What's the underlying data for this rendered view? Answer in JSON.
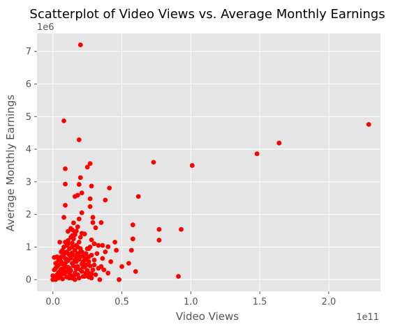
{
  "chart_data": {
    "type": "scatter",
    "title": "Scatterplot of Video Views vs. Average Monthly  Earnings",
    "xlabel": "Video Views",
    "ylabel": "Average Monthly Earnings",
    "x_offset_label": "1e11",
    "y_offset_label": "1e6",
    "xlim": [
      -0.115,
      2.375
    ],
    "ylim": [
      -0.36,
      7.55
    ],
    "x_ticks": [
      0.0,
      0.5,
      1.0,
      1.5,
      2.0
    ],
    "x_tick_labels": [
      "0.0",
      "0.5",
      "1.0",
      "1.5",
      "2.0"
    ],
    "y_ticks": [
      0,
      1,
      2,
      3,
      4,
      5,
      6,
      7
    ],
    "y_tick_labels": [
      "0",
      "1",
      "2",
      "3",
      "4",
      "5",
      "6",
      "7"
    ],
    "grid": true,
    "marker_color": "#ff0000",
    "background_color": "#e5e5e5",
    "points": [
      [
        0.2,
        7.2
      ],
      [
        0.08,
        4.87
      ],
      [
        0.19,
        4.29
      ],
      [
        2.29,
        4.76
      ],
      [
        1.64,
        4.19
      ],
      [
        1.48,
        3.86
      ],
      [
        0.73,
        3.6
      ],
      [
        1.01,
        3.5
      ],
      [
        0.27,
        3.56
      ],
      [
        0.25,
        3.45
      ],
      [
        0.09,
        3.4
      ],
      [
        0.2,
        3.13
      ],
      [
        0.09,
        2.93
      ],
      [
        0.19,
        2.92
      ],
      [
        0.28,
        2.87
      ],
      [
        0.41,
        2.81
      ],
      [
        0.21,
        2.66
      ],
      [
        0.62,
        2.55
      ],
      [
        0.18,
        2.59
      ],
      [
        0.16,
        2.55
      ],
      [
        0.38,
        2.44
      ],
      [
        0.27,
        2.48
      ],
      [
        0.09,
        2.28
      ],
      [
        0.27,
        2.24
      ],
      [
        0.21,
        2.05
      ],
      [
        0.08,
        1.91
      ],
      [
        0.29,
        1.91
      ],
      [
        0.29,
        1.75
      ],
      [
        0.35,
        1.75
      ],
      [
        0.58,
        1.68
      ],
      [
        0.31,
        1.59
      ],
      [
        0.19,
        1.86
      ],
      [
        0.15,
        1.74
      ],
      [
        0.77,
        1.54
      ],
      [
        0.93,
        1.54
      ],
      [
        0.13,
        1.57
      ],
      [
        0.14,
        1.53
      ],
      [
        0.17,
        1.49
      ],
      [
        0.21,
        1.42
      ],
      [
        0.11,
        1.48
      ],
      [
        0.16,
        1.38
      ],
      [
        0.58,
        1.25
      ],
      [
        0.77,
        1.21
      ],
      [
        0.28,
        1.22
      ],
      [
        0.05,
        1.15
      ],
      [
        0.09,
        1.15
      ],
      [
        0.11,
        1.1
      ],
      [
        0.14,
        1.12
      ],
      [
        0.3,
        1.1
      ],
      [
        0.45,
        1.15
      ],
      [
        0.33,
        1.05
      ],
      [
        0.36,
        1.05
      ],
      [
        0.4,
        1.01
      ],
      [
        0.57,
        0.9
      ],
      [
        0.46,
        0.9
      ],
      [
        0.26,
        0.95
      ],
      [
        0.2,
        0.85
      ],
      [
        0.11,
        0.8
      ],
      [
        0.15,
        0.75
      ],
      [
        0.24,
        0.65
      ],
      [
        0.3,
        0.6
      ],
      [
        0.36,
        0.65
      ],
      [
        0.42,
        0.55
      ],
      [
        0.55,
        0.5
      ],
      [
        0.03,
        0.7
      ],
      [
        0.01,
        0.68
      ],
      [
        0.06,
        0.55
      ],
      [
        0.04,
        0.45
      ],
      [
        0.02,
        0.35
      ],
      [
        0.07,
        0.3
      ],
      [
        0.09,
        0.4
      ],
      [
        0.5,
        0.4
      ],
      [
        0.6,
        0.25
      ],
      [
        0.4,
        0.2
      ],
      [
        0.37,
        0.3
      ],
      [
        0.34,
        0.0
      ],
      [
        0.91,
        0.1
      ],
      [
        0.48,
        0.0
      ],
      [
        0.28,
        0.05
      ],
      [
        0.22,
        0.1
      ],
      [
        0.26,
        0.2
      ],
      [
        0.18,
        0.15
      ],
      [
        0.12,
        0.2
      ],
      [
        0.14,
        0.05
      ],
      [
        0.16,
        0.0
      ],
      [
        0.1,
        0.08
      ],
      [
        0.05,
        0.12
      ],
      [
        0.07,
        0.02
      ],
      [
        0.03,
        0.05
      ],
      [
        0.01,
        0.02
      ],
      [
        0.0,
        0.0
      ],
      [
        0.02,
        0.0
      ],
      [
        0.04,
        0.22
      ],
      [
        0.08,
        0.18
      ],
      [
        0.12,
        0.35
      ],
      [
        0.15,
        0.42
      ],
      [
        0.17,
        0.55
      ],
      [
        0.19,
        0.62
      ],
      [
        0.21,
        0.48
      ],
      [
        0.23,
        0.38
      ],
      [
        0.25,
        0.28
      ],
      [
        0.13,
        0.66
      ],
      [
        0.11,
        0.58
      ],
      [
        0.09,
        0.5
      ],
      [
        0.06,
        0.32
      ],
      [
        0.05,
        0.25
      ],
      [
        0.03,
        0.15
      ],
      [
        0.02,
        0.08
      ],
      [
        0.18,
        0.8
      ],
      [
        0.16,
        0.9
      ],
      [
        0.14,
        1.0
      ],
      [
        0.12,
        0.95
      ],
      [
        0.1,
        0.85
      ],
      [
        0.08,
        0.78
      ],
      [
        0.22,
        0.72
      ],
      [
        0.24,
        0.8
      ],
      [
        0.2,
        0.95
      ],
      [
        0.17,
        1.05
      ],
      [
        0.19,
        1.15
      ],
      [
        0.15,
        1.25
      ],
      [
        0.13,
        1.3
      ],
      [
        0.11,
        1.2
      ],
      [
        0.07,
        0.9
      ],
      [
        0.06,
        0.7
      ],
      [
        0.04,
        0.6
      ],
      [
        0.27,
        0.42
      ],
      [
        0.29,
        0.3
      ],
      [
        0.31,
        0.15
      ],
      [
        0.33,
        0.35
      ],
      [
        0.26,
        0.7
      ],
      [
        0.23,
        0.1
      ],
      [
        0.21,
        0.25
      ],
      [
        0.17,
        0.32
      ],
      [
        0.13,
        0.12
      ],
      [
        0.09,
        0.22
      ],
      [
        0.07,
        0.48
      ],
      [
        0.05,
        0.62
      ],
      [
        0.03,
        0.4
      ],
      [
        0.01,
        0.3
      ],
      [
        0.0,
        0.12
      ],
      [
        0.02,
        0.5
      ],
      [
        0.1,
        0.62
      ],
      [
        0.12,
        0.75
      ],
      [
        0.14,
        0.5
      ],
      [
        0.16,
        0.2
      ],
      [
        0.18,
        0.4
      ],
      [
        0.2,
        0.3
      ],
      [
        0.22,
        0.55
      ],
      [
        0.24,
        0.45
      ],
      [
        0.26,
        0.08
      ],
      [
        0.28,
        0.18
      ],
      [
        0.3,
        0.45
      ],
      [
        0.32,
        0.8
      ],
      [
        0.35,
        0.4
      ],
      [
        0.38,
        0.85
      ],
      [
        0.2,
        1.3
      ],
      [
        0.23,
        1.4
      ],
      [
        0.18,
        1.62
      ],
      [
        0.16,
        1.45
      ],
      [
        0.14,
        1.35
      ],
      [
        0.1,
        1.05
      ],
      [
        0.08,
        1.0
      ],
      [
        0.06,
        0.85
      ],
      [
        0.25,
        0.95
      ],
      [
        0.27,
        1.0
      ],
      [
        0.09,
        0.65
      ],
      [
        0.11,
        0.38
      ],
      [
        0.13,
        0.28
      ],
      [
        0.15,
        0.1
      ],
      [
        0.17,
        0.7
      ],
      [
        0.19,
        0.05
      ],
      [
        0.21,
        0.85
      ],
      [
        0.23,
        0.6
      ],
      [
        0.04,
        0.05
      ],
      [
        0.06,
        0.15
      ],
      [
        0.08,
        0.35
      ],
      [
        0.1,
        0.25
      ],
      [
        0.12,
        0.05
      ],
      [
        0.14,
        0.82
      ],
      [
        0.16,
        0.6
      ],
      [
        0.18,
        1.0
      ],
      [
        0.2,
        0.7
      ],
      [
        0.22,
        0.4
      ],
      [
        0.24,
        0.2
      ],
      [
        0.26,
        0.55
      ],
      [
        0.28,
        0.75
      ]
    ]
  }
}
